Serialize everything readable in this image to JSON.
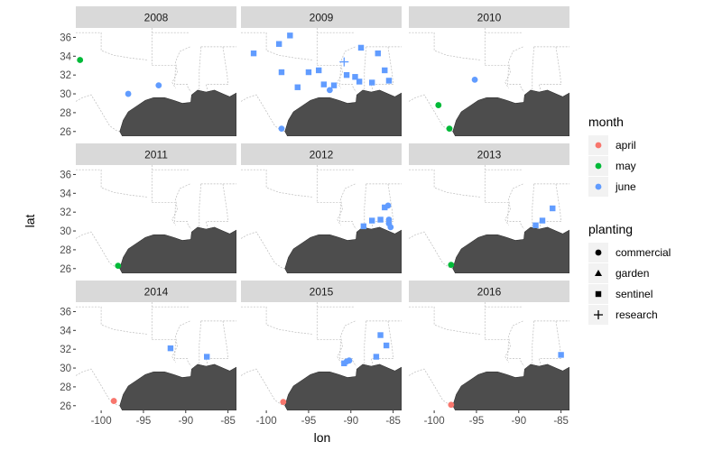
{
  "chart_data": {
    "type": "scatter",
    "facet_by": "year",
    "xlabel": "lon",
    "ylabel": "lat",
    "xlim": [
      -103,
      -84
    ],
    "ylim": [
      25.5,
      37
    ],
    "x_ticks": [
      -100,
      -95,
      -90,
      -85
    ],
    "y_ticks": [
      26,
      28,
      30,
      32,
      34,
      36
    ],
    "panels": [
      {
        "year": "2008",
        "points": [
          {
            "lon": -102.5,
            "lat": 33.6,
            "month": "may",
            "planting": "commercial"
          },
          {
            "lon": -96.8,
            "lat": 30.0,
            "month": "june",
            "planting": "commercial"
          },
          {
            "lon": -93.2,
            "lat": 30.9,
            "month": "june",
            "planting": "commercial"
          }
        ]
      },
      {
        "year": "2009",
        "points": [
          {
            "lon": -101.5,
            "lat": 34.3,
            "month": "june",
            "planting": "sentinel"
          },
          {
            "lon": -98.5,
            "lat": 35.3,
            "month": "june",
            "planting": "sentinel"
          },
          {
            "lon": -97.2,
            "lat": 36.2,
            "month": "june",
            "planting": "sentinel"
          },
          {
            "lon": -98.2,
            "lat": 32.3,
            "month": "june",
            "planting": "sentinel"
          },
          {
            "lon": -96.3,
            "lat": 30.7,
            "month": "june",
            "planting": "sentinel"
          },
          {
            "lon": -95.0,
            "lat": 32.3,
            "month": "june",
            "planting": "sentinel"
          },
          {
            "lon": -93.8,
            "lat": 32.5,
            "month": "june",
            "planting": "sentinel"
          },
          {
            "lon": -93.2,
            "lat": 31.0,
            "month": "june",
            "planting": "sentinel"
          },
          {
            "lon": -92.5,
            "lat": 30.4,
            "month": "june",
            "planting": "commercial"
          },
          {
            "lon": -92.0,
            "lat": 30.9,
            "month": "june",
            "planting": "sentinel"
          },
          {
            "lon": -90.8,
            "lat": 33.4,
            "month": "june",
            "planting": "research"
          },
          {
            "lon": -90.5,
            "lat": 32.0,
            "month": "june",
            "planting": "sentinel"
          },
          {
            "lon": -89.5,
            "lat": 31.8,
            "month": "june",
            "planting": "sentinel"
          },
          {
            "lon": -89.0,
            "lat": 31.3,
            "month": "june",
            "planting": "sentinel"
          },
          {
            "lon": -88.8,
            "lat": 34.9,
            "month": "june",
            "planting": "sentinel"
          },
          {
            "lon": -87.5,
            "lat": 31.2,
            "month": "june",
            "planting": "sentinel"
          },
          {
            "lon": -86.8,
            "lat": 34.3,
            "month": "june",
            "planting": "sentinel"
          },
          {
            "lon": -86.0,
            "lat": 32.5,
            "month": "june",
            "planting": "sentinel"
          },
          {
            "lon": -85.5,
            "lat": 31.4,
            "month": "june",
            "planting": "sentinel"
          },
          {
            "lon": -98.2,
            "lat": 26.3,
            "month": "june",
            "planting": "commercial"
          }
        ]
      },
      {
        "year": "2010",
        "points": [
          {
            "lon": -99.5,
            "lat": 28.8,
            "month": "may",
            "planting": "commercial"
          },
          {
            "lon": -98.2,
            "lat": 26.3,
            "month": "may",
            "planting": "commercial"
          },
          {
            "lon": -95.2,
            "lat": 31.5,
            "month": "june",
            "planting": "commercial"
          }
        ]
      },
      {
        "year": "2011",
        "points": [
          {
            "lon": -98.0,
            "lat": 26.3,
            "month": "may",
            "planting": "commercial"
          }
        ]
      },
      {
        "year": "2012",
        "points": [
          {
            "lon": -88.5,
            "lat": 30.5,
            "month": "june",
            "planting": "sentinel"
          },
          {
            "lon": -87.5,
            "lat": 31.1,
            "month": "june",
            "planting": "sentinel"
          },
          {
            "lon": -86.5,
            "lat": 31.2,
            "month": "june",
            "planting": "sentinel"
          },
          {
            "lon": -86.0,
            "lat": 32.5,
            "month": "june",
            "planting": "sentinel"
          },
          {
            "lon": -85.6,
            "lat": 32.7,
            "month": "june",
            "planting": "commercial"
          },
          {
            "lon": -85.5,
            "lat": 31.2,
            "month": "june",
            "planting": "commercial"
          },
          {
            "lon": -85.5,
            "lat": 30.8,
            "month": "june",
            "planting": "commercial"
          },
          {
            "lon": -85.3,
            "lat": 30.4,
            "month": "june",
            "planting": "commercial"
          }
        ]
      },
      {
        "year": "2013",
        "points": [
          {
            "lon": -98.0,
            "lat": 26.4,
            "month": "may",
            "planting": "commercial"
          },
          {
            "lon": -88.0,
            "lat": 30.6,
            "month": "june",
            "planting": "sentinel"
          },
          {
            "lon": -87.2,
            "lat": 31.1,
            "month": "june",
            "planting": "sentinel"
          },
          {
            "lon": -86.0,
            "lat": 32.4,
            "month": "june",
            "planting": "sentinel"
          }
        ]
      },
      {
        "year": "2014",
        "points": [
          {
            "lon": -98.5,
            "lat": 26.5,
            "month": "april",
            "planting": "commercial"
          },
          {
            "lon": -91.8,
            "lat": 32.1,
            "month": "june",
            "planting": "sentinel"
          },
          {
            "lon": -87.5,
            "lat": 31.2,
            "month": "june",
            "planting": "sentinel"
          }
        ]
      },
      {
        "year": "2015",
        "points": [
          {
            "lon": -98.0,
            "lat": 26.4,
            "month": "april",
            "planting": "commercial"
          },
          {
            "lon": -90.8,
            "lat": 30.5,
            "month": "june",
            "planting": "sentinel"
          },
          {
            "lon": -90.5,
            "lat": 30.7,
            "month": "june",
            "planting": "commercial"
          },
          {
            "lon": -90.2,
            "lat": 30.8,
            "month": "june",
            "planting": "commercial"
          },
          {
            "lon": -87.0,
            "lat": 31.2,
            "month": "june",
            "planting": "sentinel"
          },
          {
            "lon": -86.5,
            "lat": 33.5,
            "month": "june",
            "planting": "sentinel"
          },
          {
            "lon": -85.8,
            "lat": 32.4,
            "month": "june",
            "planting": "sentinel"
          }
        ]
      },
      {
        "year": "2016",
        "points": [
          {
            "lon": -98.0,
            "lat": 26.1,
            "month": "april",
            "planting": "commercial"
          },
          {
            "lon": -85.0,
            "lat": 31.4,
            "month": "june",
            "planting": "sentinel"
          }
        ]
      }
    ],
    "legends": [
      {
        "title": "month",
        "key": "month",
        "entries": [
          {
            "value": "april",
            "label": "april",
            "color": "#F8766D"
          },
          {
            "value": "may",
            "label": "may",
            "color": "#00BA38"
          },
          {
            "value": "june",
            "label": "june",
            "color": "#619CFF"
          }
        ]
      },
      {
        "title": "planting",
        "key": "planting",
        "entries": [
          {
            "value": "commercial",
            "label": "commercial",
            "shape": "circle"
          },
          {
            "value": "garden",
            "label": "garden",
            "shape": "triangle"
          },
          {
            "value": "sentinel",
            "label": "sentinel",
            "shape": "square"
          },
          {
            "value": "research",
            "label": "research",
            "shape": "plus"
          }
        ]
      }
    ],
    "colors": {
      "strip_bg": "#D9D9D9",
      "gulf": "#4D4D4D",
      "state_lines": "#BDBDBD"
    }
  }
}
